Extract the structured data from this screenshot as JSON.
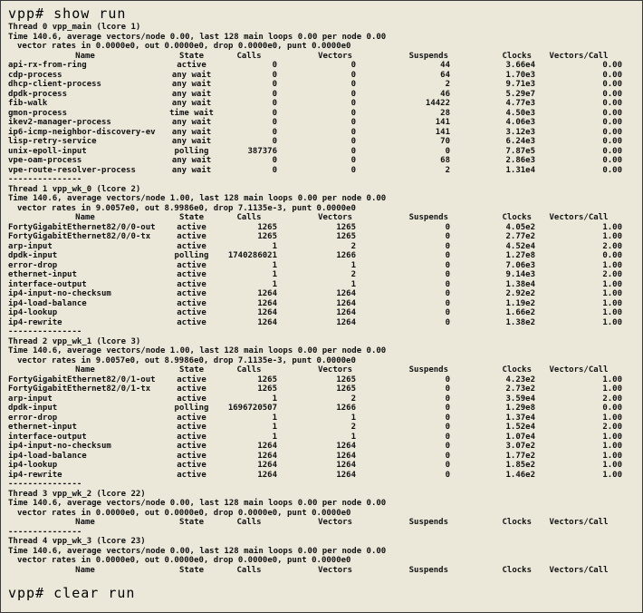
{
  "commands": {
    "show_run": "vpp# show run",
    "clear_run": "vpp# clear run"
  },
  "table": {
    "columns": [
      "Name",
      "State",
      "Calls",
      "Vectors",
      "Suspends",
      "Clocks",
      "Vectors/Call"
    ],
    "separator": "---------------"
  },
  "threads": [
    {
      "title": "Thread 0 vpp_main (lcore 1)",
      "time_line": "Time 140.6, average vectors/node 0.00, last 128 main loops 0.00 per node 0.00",
      "rates_line": "vector rates in 0.0000e0, out 0.0000e0, drop 0.0000e0, punt 0.0000e0",
      "separator_after": true,
      "rows": [
        [
          "api-rx-from-ring",
          "active",
          "0",
          "0",
          "44",
          "3.66e4",
          "0.00"
        ],
        [
          "cdp-process",
          "any wait",
          "0",
          "0",
          "64",
          "1.70e3",
          "0.00"
        ],
        [
          "dhcp-client-process",
          "any wait",
          "0",
          "0",
          "2",
          "9.71e3",
          "0.00"
        ],
        [
          "dpdk-process",
          "any wait",
          "0",
          "0",
          "46",
          "5.29e7",
          "0.00"
        ],
        [
          "fib-walk",
          "any wait",
          "0",
          "0",
          "14422",
          "4.77e3",
          "0.00"
        ],
        [
          "gmon-process",
          "time wait",
          "0",
          "0",
          "28",
          "4.50e3",
          "0.00"
        ],
        [
          "ikev2-manager-process",
          "any wait",
          "0",
          "0",
          "141",
          "4.06e3",
          "0.00"
        ],
        [
          "ip6-icmp-neighbor-discovery-ev",
          "any wait",
          "0",
          "0",
          "141",
          "3.12e3",
          "0.00"
        ],
        [
          "lisp-retry-service",
          "any wait",
          "0",
          "0",
          "70",
          "6.24e3",
          "0.00"
        ],
        [
          "unix-epoll-input",
          "polling",
          "387376",
          "0",
          "0",
          "7.87e5",
          "0.00"
        ],
        [
          "vpe-oam-process",
          "any wait",
          "0",
          "0",
          "68",
          "2.86e3",
          "0.00"
        ],
        [
          "vpe-route-resolver-process",
          "any wait",
          "0",
          "0",
          "2",
          "1.31e4",
          "0.00"
        ]
      ]
    },
    {
      "title": "Thread 1 vpp_wk_0 (lcore 2)",
      "time_line": "Time 140.6, average vectors/node 1.00, last 128 main loops 0.00 per node 0.00",
      "rates_line": "vector rates in 9.0057e0, out 8.9986e0, drop 7.1135e-3, punt 0.0000e0",
      "separator_after": true,
      "rows": [
        [
          "FortyGigabitEthernet82/0/0-out",
          "active",
          "1265",
          "1265",
          "0",
          "4.05e2",
          "1.00"
        ],
        [
          "FortyGigabitEthernet82/0/0-tx",
          "active",
          "1265",
          "1265",
          "0",
          "2.77e2",
          "1.00"
        ],
        [
          "arp-input",
          "active",
          "1",
          "2",
          "0",
          "4.52e4",
          "2.00"
        ],
        [
          "dpdk-input",
          "polling",
          "1740286021",
          "1266",
          "0",
          "1.27e8",
          "0.00"
        ],
        [
          "error-drop",
          "active",
          "1",
          "1",
          "0",
          "7.06e3",
          "1.00"
        ],
        [
          "ethernet-input",
          "active",
          "1",
          "2",
          "0",
          "9.14e3",
          "2.00"
        ],
        [
          "interface-output",
          "active",
          "1",
          "1",
          "0",
          "1.38e4",
          "1.00"
        ],
        [
          "ip4-input-no-checksum",
          "active",
          "1264",
          "1264",
          "0",
          "2.92e2",
          "1.00"
        ],
        [
          "ip4-load-balance",
          "active",
          "1264",
          "1264",
          "0",
          "1.19e2",
          "1.00"
        ],
        [
          "ip4-lookup",
          "active",
          "1264",
          "1264",
          "0",
          "1.66e2",
          "1.00"
        ],
        [
          "ip4-rewrite",
          "active",
          "1264",
          "1264",
          "0",
          "1.38e2",
          "1.00"
        ]
      ]
    },
    {
      "title": "Thread 2 vpp_wk_1 (lcore 3)",
      "time_line": "Time 140.6, average vectors/node 1.00, last 128 main loops 0.00 per node 0.00",
      "rates_line": "vector rates in 9.0057e0, out 8.9986e0, drop 7.1135e-3, punt 0.0000e0",
      "separator_after": true,
      "rows": [
        [
          "FortyGigabitEthernet82/0/1-out",
          "active",
          "1265",
          "1265",
          "0",
          "4.23e2",
          "1.00"
        ],
        [
          "FortyGigabitEthernet82/0/1-tx",
          "active",
          "1265",
          "1265",
          "0",
          "2.73e2",
          "1.00"
        ],
        [
          "arp-input",
          "active",
          "1",
          "2",
          "0",
          "3.59e4",
          "2.00"
        ],
        [
          "dpdk-input",
          "polling",
          "1696720507",
          "1266",
          "0",
          "1.29e8",
          "0.00"
        ],
        [
          "error-drop",
          "active",
          "1",
          "1",
          "0",
          "1.37e4",
          "1.00"
        ],
        [
          "ethernet-input",
          "active",
          "1",
          "2",
          "0",
          "1.52e4",
          "2.00"
        ],
        [
          "interface-output",
          "active",
          "1",
          "1",
          "0",
          "1.07e4",
          "1.00"
        ],
        [
          "ip4-input-no-checksum",
          "active",
          "1264",
          "1264",
          "0",
          "3.07e2",
          "1.00"
        ],
        [
          "ip4-load-balance",
          "active",
          "1264",
          "1264",
          "0",
          "1.77e2",
          "1.00"
        ],
        [
          "ip4-lookup",
          "active",
          "1264",
          "1264",
          "0",
          "1.85e2",
          "1.00"
        ],
        [
          "ip4-rewrite",
          "active",
          "1264",
          "1264",
          "0",
          "1.46e2",
          "1.00"
        ]
      ]
    },
    {
      "title": "Thread 3 vpp_wk_2 (lcore 22)",
      "time_line": "Time 140.6, average vectors/node 0.00, last 128 main loops 0.00 per node 0.00",
      "rates_line": "vector rates in 0.0000e0, out 0.0000e0, drop 0.0000e0, punt 0.0000e0",
      "separator_after": true,
      "rows": []
    },
    {
      "title": "Thread 4 vpp_wk_3 (lcore 23)",
      "time_line": "Time 140.6, average vectors/node 0.00, last 128 main loops 0.00 per node 0.00",
      "rates_line": "vector rates in 0.0000e0, out 0.0000e0, drop 0.0000e0, punt 0.0000e0",
      "separator_after": false,
      "rows": []
    }
  ]
}
